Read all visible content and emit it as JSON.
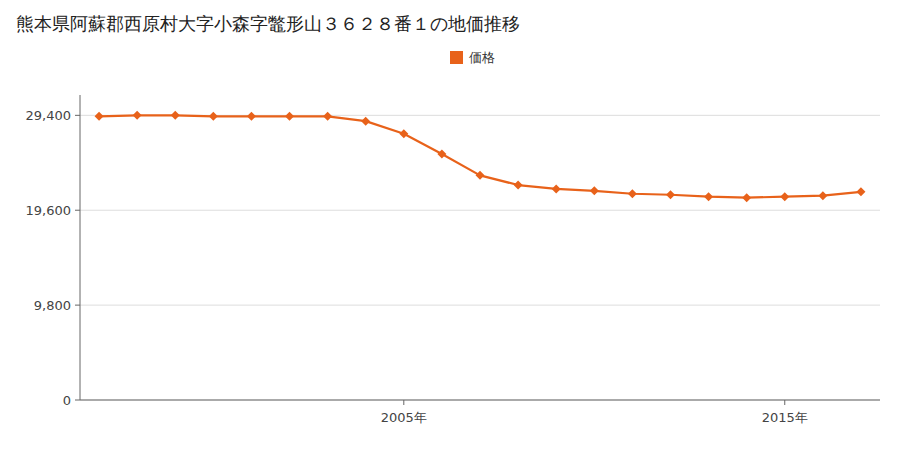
{
  "chart_data": {
    "type": "line",
    "title": "熊本県阿蘇郡西原村大字小森字鼈形山３６２８番１の地価推移",
    "x": [
      1997,
      1998,
      1999,
      2000,
      2001,
      2002,
      2003,
      2004,
      2005,
      2006,
      2007,
      2008,
      2009,
      2010,
      2011,
      2012,
      2013,
      2014,
      2015,
      2016,
      2017
    ],
    "series": [
      {
        "name": "価格",
        "color": "#E8621A",
        "marker": "diamond",
        "values": [
          29300,
          29400,
          29400,
          29300,
          29300,
          29300,
          29300,
          28800,
          27500,
          25400,
          23200,
          22200,
          21800,
          21600,
          21300,
          21200,
          21000,
          20900,
          21000,
          21100,
          21500
        ]
      }
    ],
    "xlim": [
      1996.5,
      2017.5
    ],
    "xticks": [
      {
        "value": 2005,
        "label": "2005年"
      },
      {
        "value": 2015,
        "label": "2015年"
      }
    ],
    "ylim": [
      0,
      31500
    ],
    "yticks": [
      0,
      {
        "value": 9800,
        "label": "9,800"
      },
      {
        "value": 19600,
        "label": "19,600"
      },
      {
        "value": 29400,
        "label": "29,400"
      }
    ],
    "grid": "y",
    "legend": "top"
  }
}
